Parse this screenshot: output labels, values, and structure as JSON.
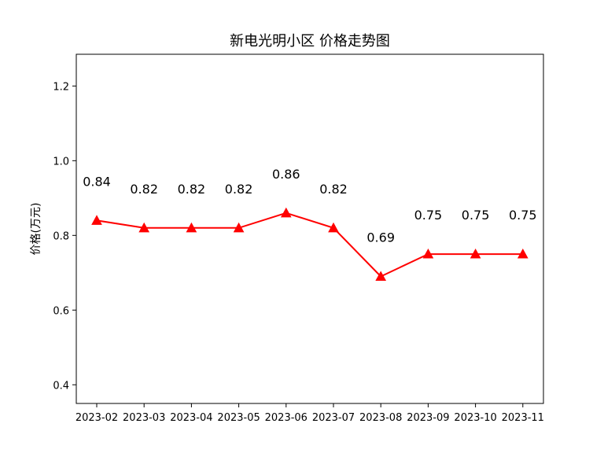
{
  "chart_data": {
    "type": "line",
    "title": "新电光明小区 价格走势图",
    "xlabel": "",
    "ylabel": "价格(万元)",
    "categories": [
      "2023-02",
      "2023-03",
      "2023-04",
      "2023-05",
      "2023-06",
      "2023-07",
      "2023-08",
      "2023-09",
      "2023-10",
      "2023-11"
    ],
    "series": [
      {
        "values": [
          0.84,
          0.82,
          0.82,
          0.82,
          0.86,
          0.82,
          0.69,
          0.75,
          0.75,
          0.75
        ],
        "data_labels": [
          "0.84",
          "0.82",
          "0.82",
          "0.82",
          "0.86",
          "0.82",
          "0.69",
          "0.75",
          "0.75",
          "0.75"
        ],
        "color": "#ff0000",
        "marker": "triangle-up"
      }
    ],
    "ylim": [
      0.35,
      1.285
    ],
    "yticks": [
      0.4,
      0.6,
      0.8,
      1.0,
      1.2
    ],
    "ytick_labels": [
      "0.4",
      "0.6",
      "0.8",
      "1.0",
      "1.2"
    ],
    "grid": false,
    "legend": "none"
  }
}
